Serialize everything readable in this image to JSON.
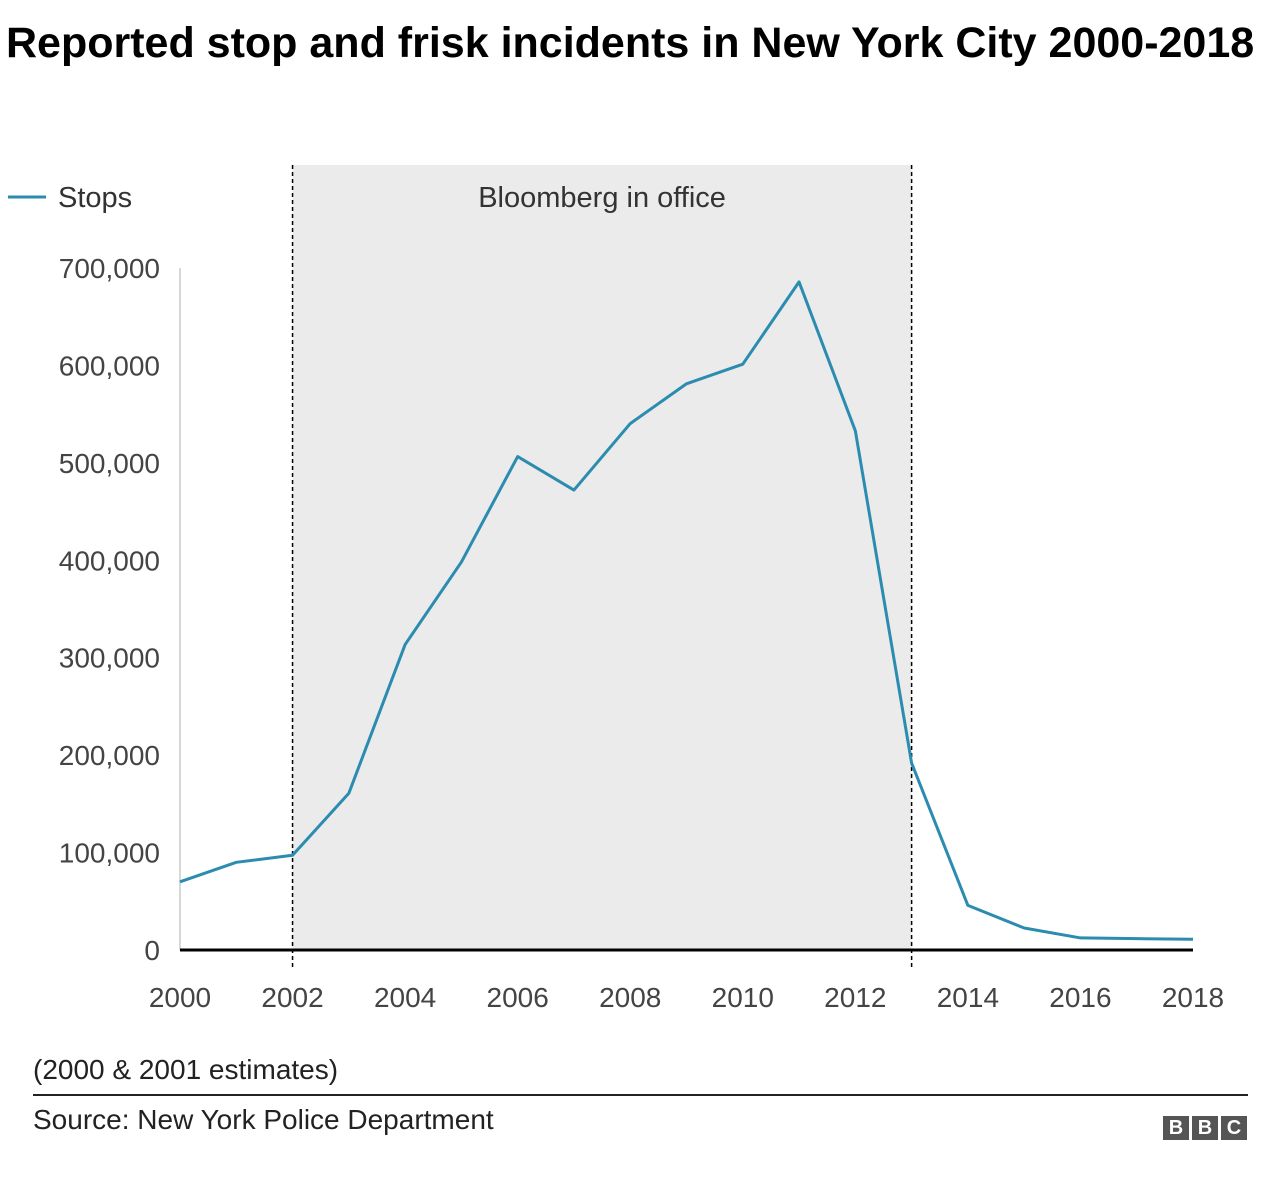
{
  "title": "Reported stop and frisk incidents in New York City 2000-2018",
  "note": "(2000 & 2001 estimates)",
  "source": "Source: New York Police Department",
  "logo": [
    "B",
    "B",
    "C"
  ],
  "colors": {
    "line": "#2b8cb0",
    "shade": "#ebebeb"
  },
  "chart_data": {
    "type": "line",
    "title": "Reported stop and frisk incidents in New York City 2000-2018",
    "xlabel": "",
    "ylabel": "",
    "x": [
      2000,
      2001,
      2002,
      2003,
      2004,
      2005,
      2006,
      2007,
      2008,
      2009,
      2010,
      2011,
      2012,
      2013,
      2014,
      2015,
      2016,
      2017,
      2018
    ],
    "series": [
      {
        "name": "Stops",
        "values": [
          70000,
          90000,
          97296,
          160851,
          313523,
          398191,
          506491,
          472096,
          540302,
          581168,
          601285,
          685724,
          532911,
          191851,
          45787,
          22565,
          12404,
          11629,
          11008
        ]
      }
    ],
    "xlim": [
      2000,
      2018
    ],
    "ylim": [
      0,
      700000
    ],
    "yticks": [
      0,
      100000,
      200000,
      300000,
      400000,
      500000,
      600000,
      700000
    ],
    "ytick_labels": [
      "0",
      "100,000",
      "200,000",
      "300,000",
      "400,000",
      "500,000",
      "600,000",
      "700,000"
    ],
    "xticks": [
      2000,
      2002,
      2004,
      2006,
      2008,
      2010,
      2012,
      2014,
      2016,
      2018
    ],
    "xtick_labels": [
      "2000",
      "2002",
      "2004",
      "2006",
      "2008",
      "2010",
      "2012",
      "2014",
      "2016",
      "2018"
    ],
    "legend": {
      "placement": "top-left",
      "entries": [
        "Stops"
      ]
    },
    "annotation": {
      "label": "Bloomberg in office",
      "start": 2002,
      "end": 2013
    }
  }
}
